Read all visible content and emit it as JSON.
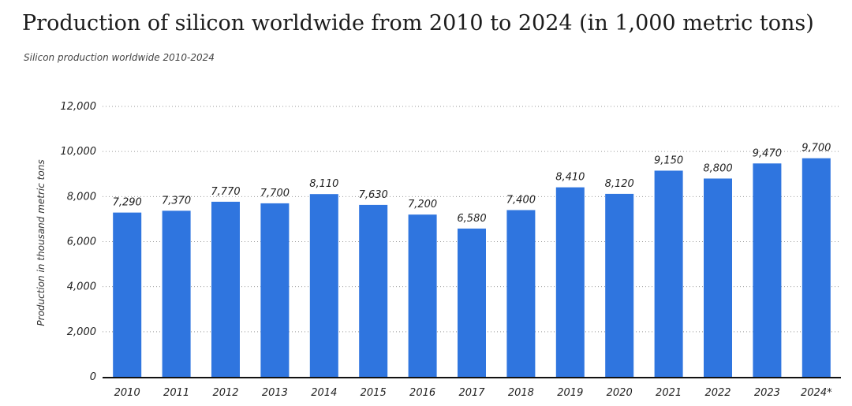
{
  "chart_data": {
    "type": "bar",
    "title": "Production of silicon worldwide from 2010 to 2024 (in 1,000 metric tons)",
    "subtitle": "Silicon production worldwide 2010-2024",
    "xlabel": "",
    "ylabel": "Production in thousand metric tons",
    "ylim": [
      0,
      12000
    ],
    "yticks": [
      0,
      2000,
      4000,
      6000,
      8000,
      10000,
      12000
    ],
    "ytick_labels": [
      "0",
      "2,000",
      "4,000",
      "6,000",
      "8,000",
      "10,000",
      "12,000"
    ],
    "categories": [
      "2010",
      "2011",
      "2012",
      "2013",
      "2014",
      "2015",
      "2016",
      "2017",
      "2018",
      "2019",
      "2020",
      "2021",
      "2022",
      "2023",
      "2024*"
    ],
    "values": [
      7290,
      7370,
      7770,
      7700,
      8110,
      7630,
      7200,
      6580,
      7400,
      8410,
      8120,
      9150,
      8800,
      9470,
      9700
    ],
    "value_labels": [
      "7,290",
      "7,370",
      "7,770",
      "7,700",
      "8,110",
      "7,630",
      "7,200",
      "6,580",
      "7,400",
      "8,410",
      "8,120",
      "9,150",
      "8,800",
      "9,470",
      "9,700"
    ],
    "grid": true,
    "bar_color": "#2f75df"
  }
}
